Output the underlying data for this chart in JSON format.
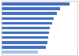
{
  "values": [
    72,
    62,
    58,
    55,
    53,
    51,
    50,
    49,
    48,
    47,
    38
  ],
  "bar_colors": [
    "#4472c4",
    "#4472c4",
    "#4472c4",
    "#4472c4",
    "#4472c4",
    "#4472c4",
    "#4472c4",
    "#4472c4",
    "#4472c4",
    "#4472c4",
    "#a9c4e8"
  ],
  "background_color": "#ffffff",
  "xlim": [
    0,
    80
  ],
  "border_color": "#c0c0c0"
}
